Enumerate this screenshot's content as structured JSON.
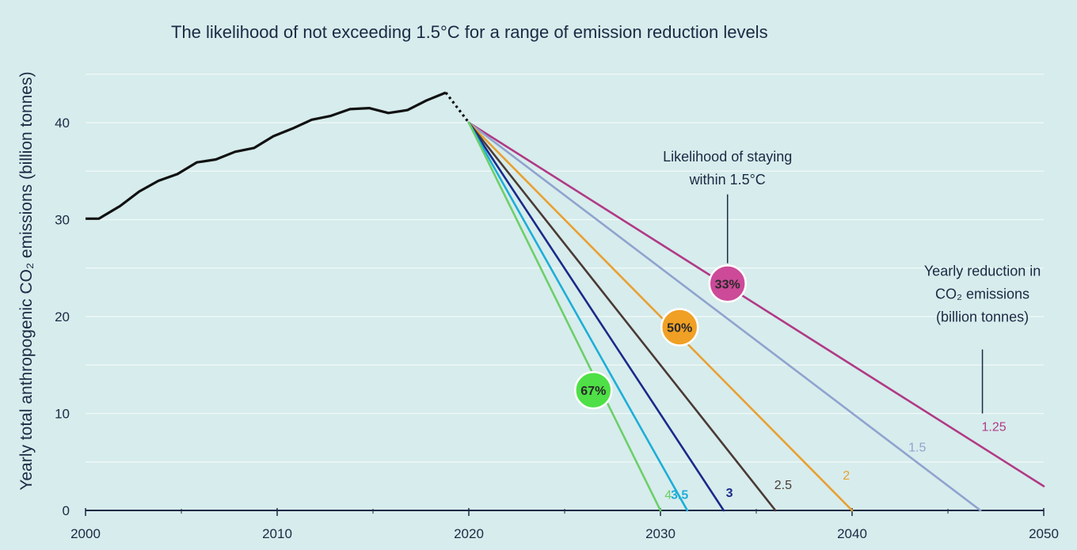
{
  "chart_data": {
    "type": "line",
    "title": "The likelihood of not exceeding 1.5°C for a range of emission reduction levels",
    "ylabel": "Yearly total anthropogenic CO₂ emissions (billion tonnes)",
    "xlabel": "",
    "xlim": [
      2000,
      2050
    ],
    "ylim": [
      0,
      45
    ],
    "xticks": [
      "2000",
      "2010",
      "2020",
      "2030",
      "2040",
      "2050"
    ],
    "yticks": [
      "0",
      "10",
      "20",
      "30",
      "40"
    ],
    "grid": true,
    "historical": {
      "x": [
        2000,
        2000.7,
        2001.8,
        2002.8,
        2003.8,
        2004.8,
        2005.8,
        2006.8,
        2007.8,
        2008.8,
        2009.8,
        2010.8,
        2011.8,
        2012.8,
        2013.8,
        2014.8,
        2015.8,
        2016.8,
        2017.8,
        2018.8
      ],
      "y": [
        30.1,
        30.1,
        31.4,
        32.9,
        34.0,
        34.7,
        35.9,
        36.2,
        37.0,
        37.4,
        38.6,
        39.4,
        40.3,
        40.7,
        41.4,
        41.5,
        41.0,
        41.3,
        42.3,
        43.1
      ],
      "projection_start": [
        2020,
        40
      ]
    },
    "series": [
      {
        "name": "1.25",
        "x": [
          2020,
          2050
        ],
        "y": [
          40,
          2.5
        ],
        "color": "#b03a86"
      },
      {
        "name": "1.5",
        "x": [
          2020,
          2046.7
        ],
        "y": [
          40,
          0
        ],
        "color": "#8fa3cf"
      },
      {
        "name": "2",
        "x": [
          2020,
          2040
        ],
        "y": [
          40,
          0
        ],
        "color": "#e8a032"
      },
      {
        "name": "2.5",
        "x": [
          2020,
          2036
        ],
        "y": [
          40,
          0
        ],
        "color": "#4a3a36"
      },
      {
        "name": "3",
        "x": [
          2020,
          2033.3
        ],
        "y": [
          40,
          0
        ],
        "color": "#1a2a8a"
      },
      {
        "name": "3.5",
        "x": [
          2020,
          2031.4
        ],
        "y": [
          40,
          0
        ],
        "color": "#1eaed8"
      },
      {
        "name": "4",
        "x": [
          2020,
          2030
        ],
        "y": [
          40,
          0
        ],
        "color": "#6ccf6a"
      }
    ],
    "series_label_positions": [
      {
        "name": "1.25",
        "x": 2047.4,
        "y": 8.2
      },
      {
        "name": "1.5",
        "x": 2043.4,
        "y": 6.1
      },
      {
        "name": "2",
        "x": 2039.7,
        "y": 3.2
      },
      {
        "name": "2.5",
        "x": 2036.4,
        "y": 2.2
      },
      {
        "name": "3",
        "x": 2033.6,
        "y": 1.4
      },
      {
        "name": "3.5",
        "x": 2031.0,
        "y": 1.2
      },
      {
        "name": "4",
        "x": 2030.4,
        "y": 1.2
      }
    ],
    "likelihood_badges": [
      {
        "label": "33%",
        "x": 2033.5,
        "y": 23.4,
        "color": "#cc4a98"
      },
      {
        "label": "50%",
        "x": 2031.0,
        "y": 18.9,
        "color": "#f0a024"
      },
      {
        "label": "67%",
        "x": 2026.5,
        "y": 12.4,
        "color": "#4ee046"
      }
    ],
    "annotations": [
      {
        "lines": [
          "Likelihood of staying",
          "within 1.5°C"
        ],
        "x": 2033.5,
        "y": 36.0,
        "pointer": [
          [
            2033.5,
            32.6
          ],
          [
            2033.5,
            25.5
          ]
        ]
      },
      {
        "lines": [
          "Yearly reduction in",
          "CO₂ emissions",
          "(billion tonnes)"
        ],
        "x": 2046.8,
        "y": 24.2,
        "pointer": [
          [
            2046.8,
            16.6
          ],
          [
            2046.8,
            10.0
          ]
        ]
      }
    ]
  }
}
